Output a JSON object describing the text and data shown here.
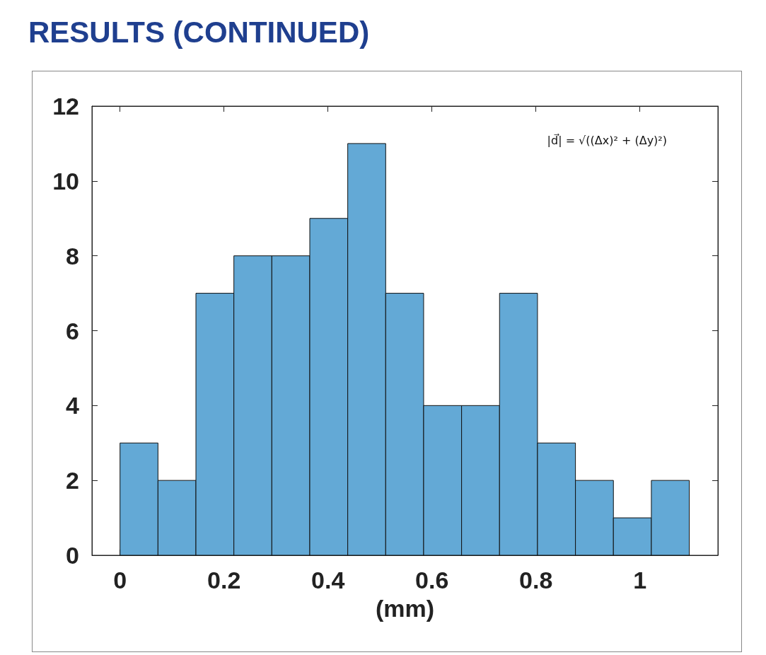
{
  "chart_data": {
    "type": "histogram",
    "title": "RESULTS (CONTINUED)",
    "xlabel": "(mm)",
    "bins": [
      0,
      0.073,
      0.146,
      0.219,
      0.292,
      0.365,
      0.438,
      0.511,
      0.584,
      0.657,
      0.73,
      0.803,
      0.876,
      0.949,
      1.022,
      1.095
    ],
    "values": [
      3,
      2,
      7,
      8,
      8,
      9,
      11,
      7,
      4,
      4,
      7,
      3,
      2,
      1,
      2
    ],
    "color": "#63a9d6",
    "xlim": [
      -0.054,
      1.15
    ],
    "xticks": [
      0,
      0.2,
      0.4,
      0.6,
      0.8,
      1
    ],
    "ylim": [
      0,
      12
    ],
    "yticks": [
      0,
      2,
      4,
      6,
      8,
      10,
      12
    ],
    "annotations": [
      "|d⃗| = √((Δx)² + (Δy)²)"
    ],
    "grid": false
  }
}
